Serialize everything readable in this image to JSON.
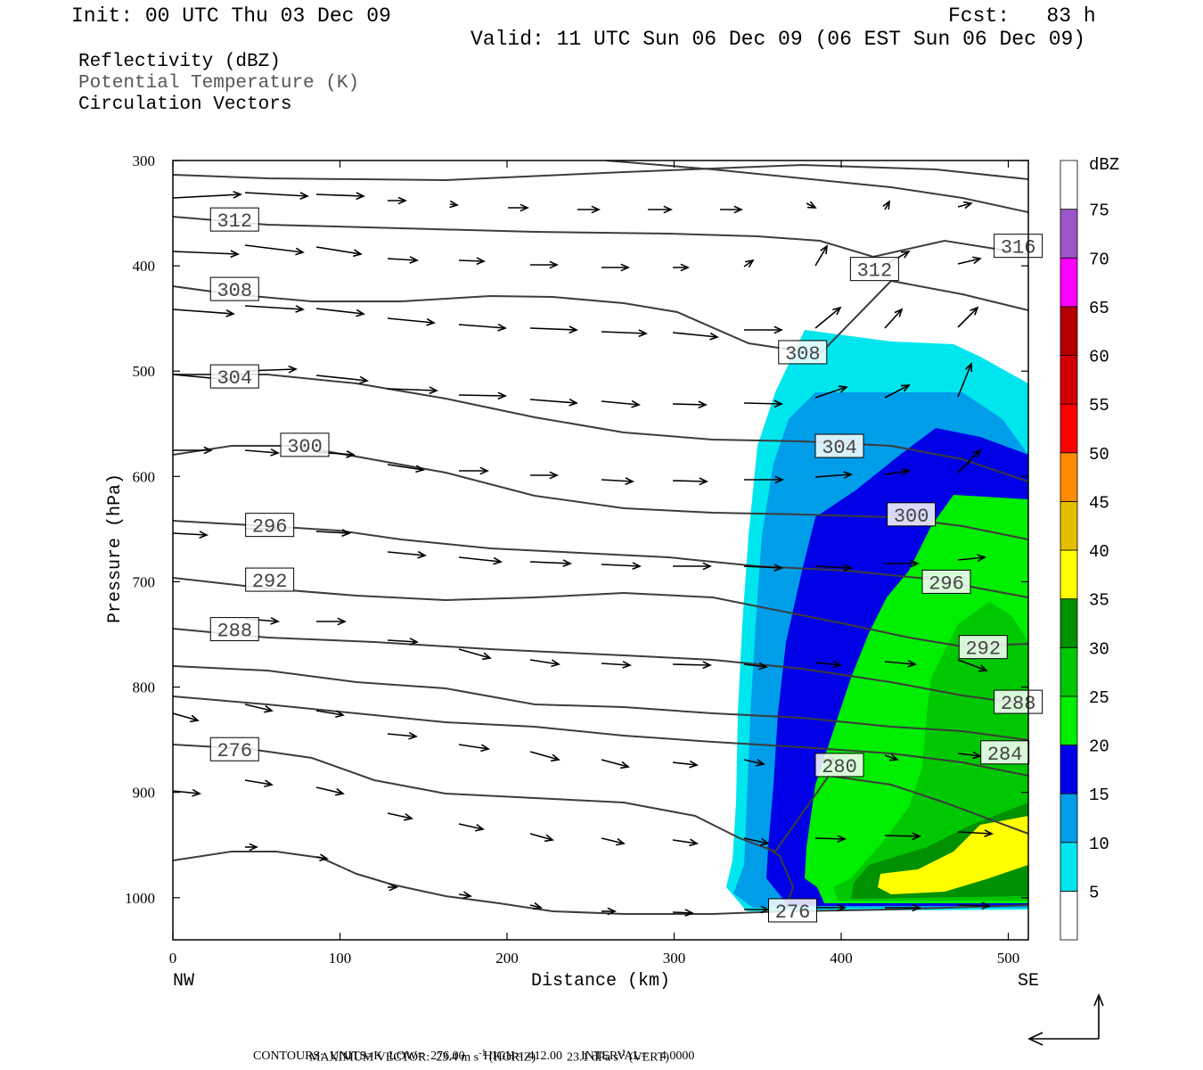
{
  "header": {
    "init": "Init: 00 UTC Thu 03 Dec 09",
    "fcst": "Fcst:   83 h",
    "valid": "Valid: 11 UTC Sun 06 Dec 09 (06 EST Sun 06 Dec 09)"
  },
  "fields": {
    "line1": "Reflectivity (dBZ)",
    "line2": "Potential Temperature (K)",
    "line3": "Circulation Vectors"
  },
  "footer": {
    "max_vector_label": "MAXIMUM VECTOR:",
    "max_vector_horiz": "23.4 m s",
    "horiz_tag": "(HORIZ)",
    "max_vector_vert": "23.1 dPa s",
    "vert_tag": "(VERT)",
    "contours_line": "CONTOURS:  UNITS=K  LOW=  276.00      HIGH=  412.00      INTERVAL=    4.0000"
  },
  "chart_data": {
    "type": "contour",
    "xlabel": "Distance (km)",
    "ylabel": "Pressure (hPa)",
    "x_ticks": [
      0,
      100,
      200,
      300,
      400,
      500
    ],
    "y_ticks": [
      300,
      400,
      500,
      600,
      700,
      800,
      900,
      1000
    ],
    "x_end_labels": [
      "NW",
      "SE"
    ],
    "xlim": [
      0,
      512
    ],
    "ylim": [
      1040,
      300
    ],
    "colorbar": {
      "title": "dBZ",
      "levels": [
        5,
        10,
        15,
        20,
        25,
        30,
        35,
        40,
        45,
        50,
        55,
        60,
        65,
        70,
        75
      ],
      "colors": [
        "#ffffff",
        "#00e6ee",
        "#009ee8",
        "#0000e6",
        "#00ee00",
        "#00c800",
        "#009100",
        "#ffff00",
        "#e6be00",
        "#ff8c00",
        "#ff0000",
        "#d20000",
        "#b40000",
        "#ff00ff",
        "#9b55c8",
        "#ffffff"
      ]
    },
    "theta_labels": [
      {
        "value": "312",
        "x": 22,
        "p": 356
      },
      {
        "value": "308",
        "x": 22,
        "p": 422
      },
      {
        "value": "304",
        "x": 22,
        "p": 505
      },
      {
        "value": "300",
        "x": 64,
        "p": 570
      },
      {
        "value": "296",
        "x": 43,
        "p": 646
      },
      {
        "value": "292",
        "x": 43,
        "p": 698
      },
      {
        "value": "288",
        "x": 22,
        "p": 745
      },
      {
        "value": "276",
        "x": 22,
        "p": 859
      },
      {
        "value": "316",
        "x": 491,
        "p": 381
      },
      {
        "value": "312",
        "x": 405,
        "p": 403
      },
      {
        "value": "308",
        "x": 362,
        "p": 482
      },
      {
        "value": "304",
        "x": 384,
        "p": 571
      },
      {
        "value": "300",
        "x": 427,
        "p": 636
      },
      {
        "value": "296",
        "x": 448,
        "p": 700
      },
      {
        "value": "292",
        "x": 470,
        "p": 762
      },
      {
        "value": "288",
        "x": 491,
        "p": 814
      },
      {
        "value": "284",
        "x": 483,
        "p": 862
      },
      {
        "value": "280",
        "x": 384,
        "p": 874
      },
      {
        "value": "276",
        "x": 356,
        "p": 1012
      }
    ]
  }
}
